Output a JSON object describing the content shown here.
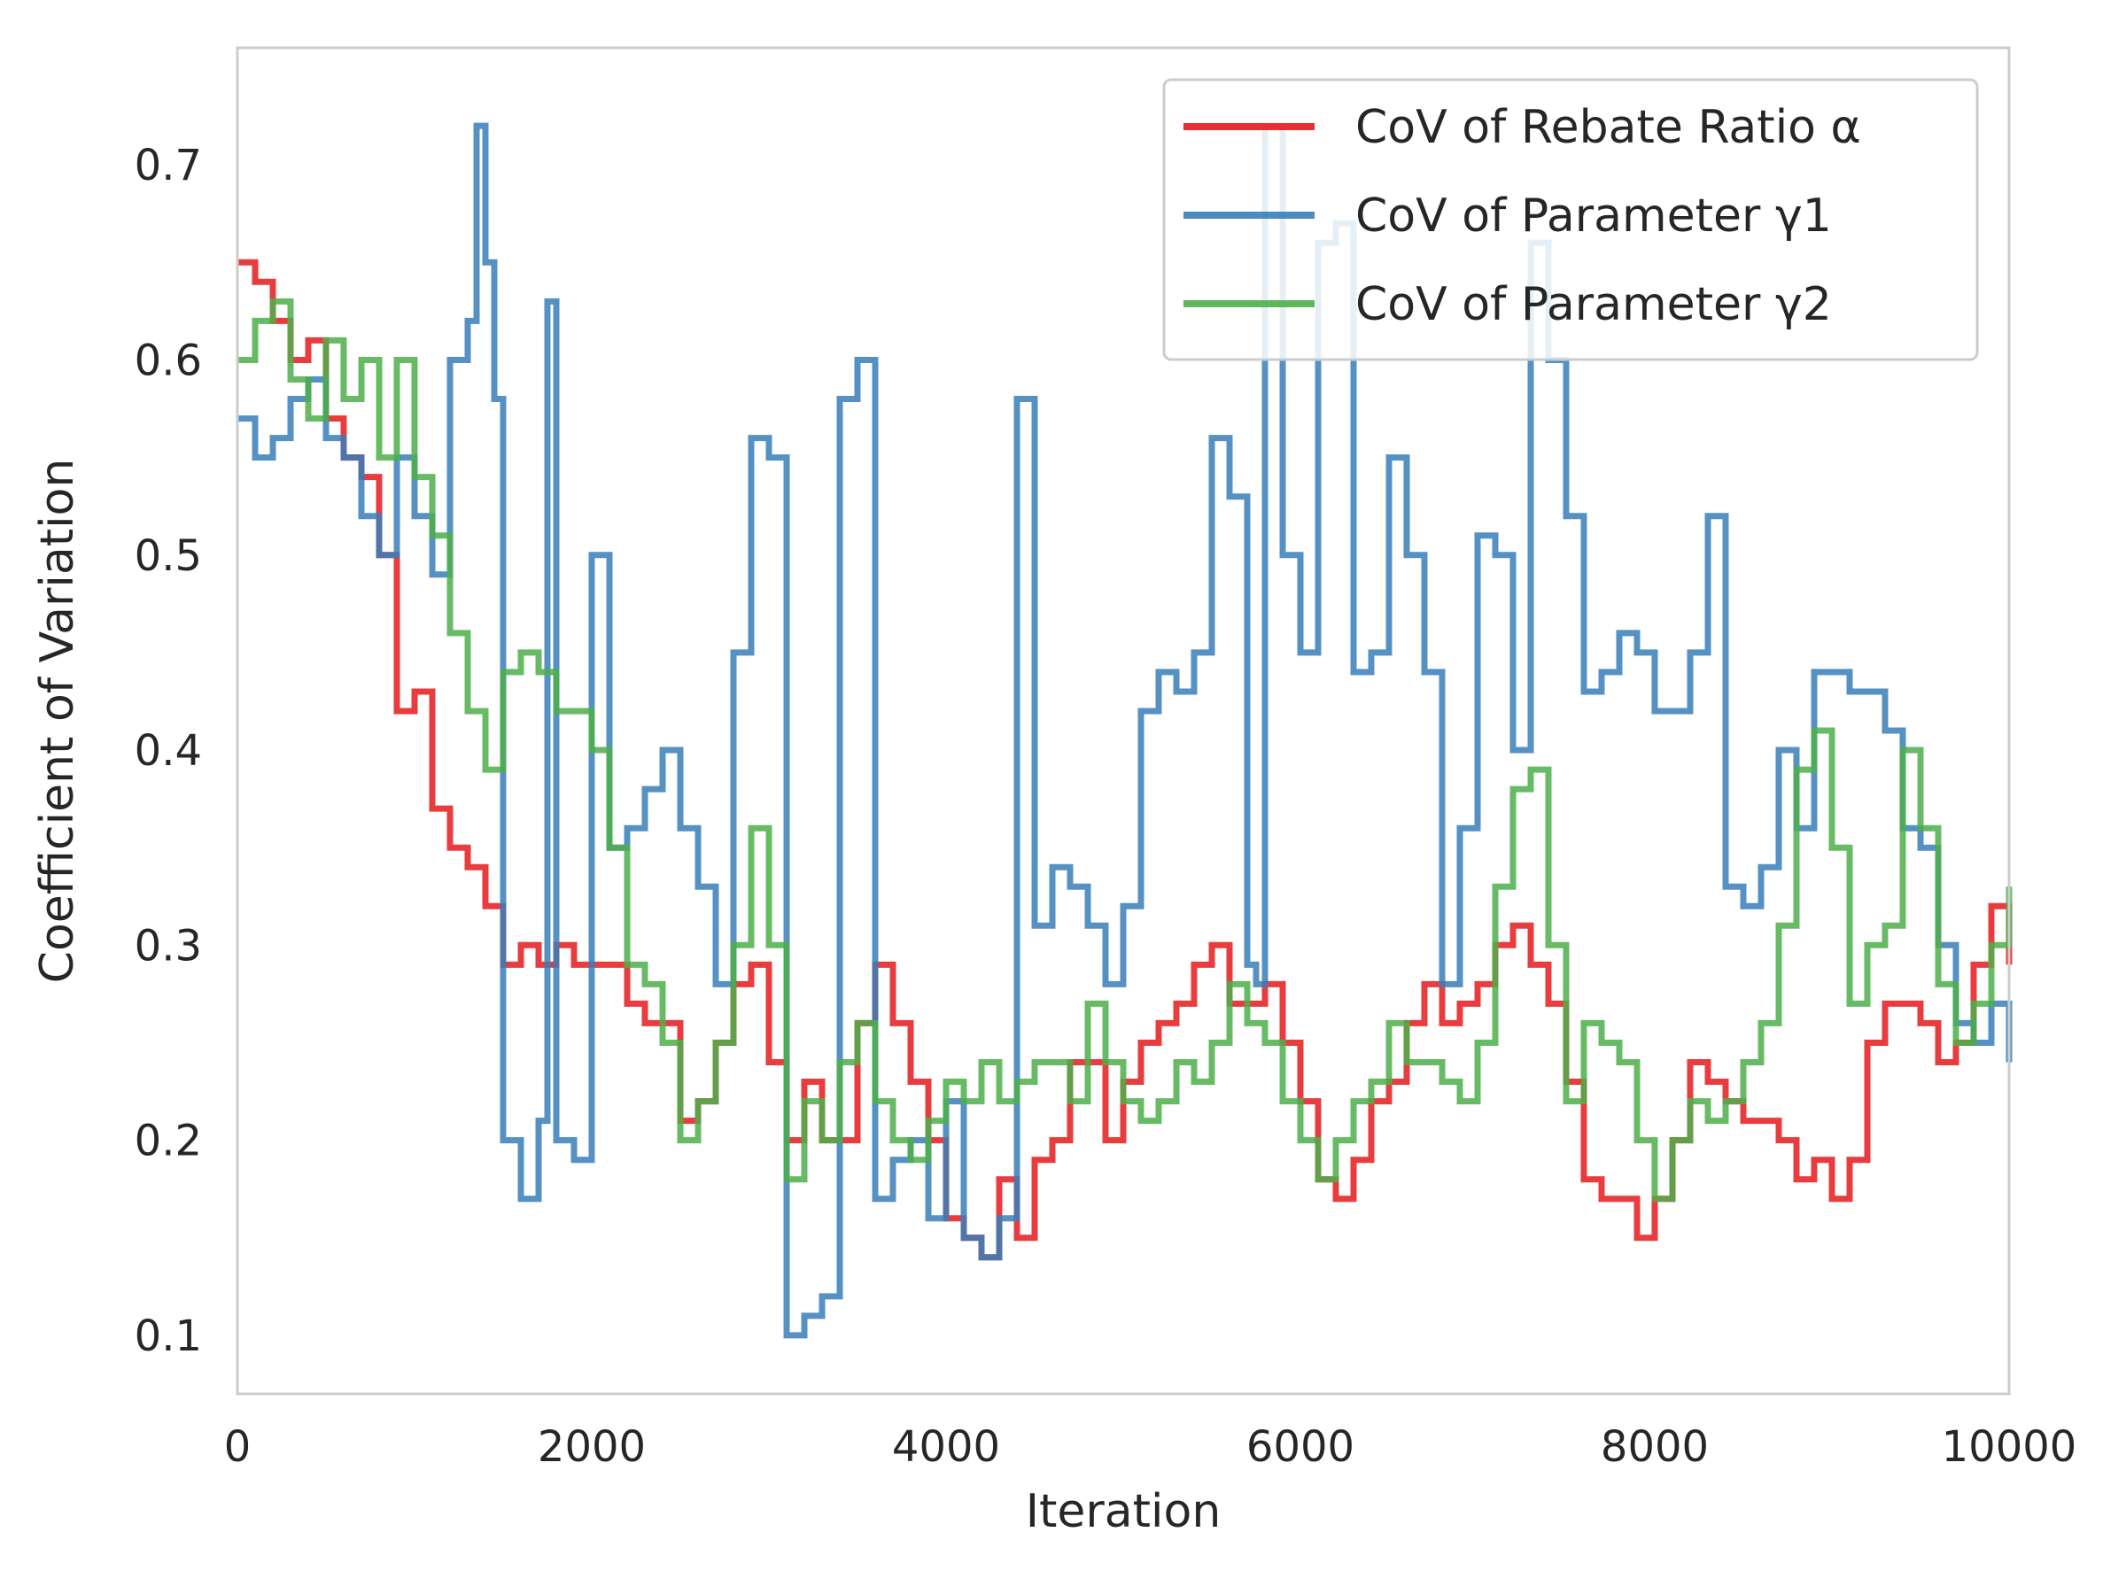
{
  "chart_data": {
    "type": "line",
    "xlabel": "Iteration",
    "ylabel": "Coefficient of Variation",
    "xlim": [
      0,
      10000
    ],
    "ylim": [
      0.07,
      0.76
    ],
    "xticks": [
      0,
      2000,
      4000,
      6000,
      8000,
      10000
    ],
    "yticks": [
      0.1,
      0.2,
      0.3,
      0.4,
      0.5,
      0.6,
      0.7
    ],
    "grid": false,
    "legend_position": "top-right",
    "series": [
      {
        "name": "CoV of Rebate Ratio α",
        "color": "#e41a1c",
        "x": [
          0,
          100,
          200,
          300,
          400,
          500,
          600,
          700,
          800,
          900,
          1000,
          1100,
          1200,
          1300,
          1400,
          1500,
          1600,
          1700,
          1800,
          1900,
          2000,
          2100,
          2200,
          2300,
          2400,
          2500,
          2600,
          2700,
          2800,
          2900,
          3000,
          3100,
          3200,
          3300,
          3400,
          3500,
          3600,
          3700,
          3800,
          3900,
          4000,
          4100,
          4200,
          4300,
          4400,
          4500,
          4600,
          4700,
          4800,
          4900,
          5000,
          5100,
          5200,
          5300,
          5400,
          5500,
          5600,
          5700,
          5800,
          5900,
          6000,
          6100,
          6200,
          6300,
          6400,
          6500,
          6600,
          6700,
          6800,
          6900,
          7000,
          7100,
          7200,
          7300,
          7400,
          7500,
          7600,
          7700,
          7800,
          7900,
          8000,
          8100,
          8200,
          8300,
          8400,
          8500,
          8600,
          8700,
          8800,
          8900,
          9000,
          9100,
          9200,
          9300,
          9400,
          9500,
          9600,
          9700,
          9800,
          9900,
          10000
        ],
        "y": [
          0.65,
          0.64,
          0.62,
          0.6,
          0.61,
          0.57,
          0.55,
          0.54,
          0.5,
          0.42,
          0.43,
          0.37,
          0.35,
          0.34,
          0.32,
          0.29,
          0.3,
          0.29,
          0.3,
          0.29,
          0.29,
          0.29,
          0.27,
          0.26,
          0.26,
          0.21,
          0.22,
          0.25,
          0.28,
          0.29,
          0.24,
          0.2,
          0.23,
          0.2,
          0.2,
          0.26,
          0.29,
          0.26,
          0.23,
          0.2,
          0.16,
          0.15,
          0.14,
          0.18,
          0.15,
          0.19,
          0.2,
          0.24,
          0.24,
          0.2,
          0.23,
          0.25,
          0.26,
          0.27,
          0.29,
          0.3,
          0.27,
          0.27,
          0.28,
          0.25,
          0.22,
          0.18,
          0.17,
          0.19,
          0.22,
          0.23,
          0.26,
          0.28,
          0.26,
          0.27,
          0.28,
          0.3,
          0.31,
          0.29,
          0.27,
          0.23,
          0.18,
          0.17,
          0.17,
          0.15,
          0.17,
          0.2,
          0.24,
          0.23,
          0.22,
          0.21,
          0.21,
          0.2,
          0.18,
          0.19,
          0.17,
          0.19,
          0.25,
          0.27,
          0.27,
          0.26,
          0.24,
          0.25,
          0.29,
          0.32,
          0.29
        ]
      },
      {
        "name": "CoV of Parameter γ1",
        "color": "#377eb8",
        "x": [
          0,
          100,
          200,
          300,
          400,
          500,
          600,
          700,
          800,
          900,
          1000,
          1100,
          1200,
          1300,
          1350,
          1400,
          1450,
          1500,
          1600,
          1700,
          1750,
          1800,
          1900,
          2000,
          2100,
          2200,
          2300,
          2400,
          2500,
          2600,
          2700,
          2800,
          2900,
          3000,
          3100,
          3200,
          3300,
          3400,
          3500,
          3600,
          3700,
          3800,
          3900,
          4000,
          4100,
          4200,
          4300,
          4400,
          4500,
          4600,
          4700,
          4800,
          4900,
          5000,
          5100,
          5200,
          5300,
          5400,
          5500,
          5600,
          5700,
          5750,
          5800,
          5900,
          6000,
          6100,
          6200,
          6300,
          6400,
          6500,
          6600,
          6700,
          6800,
          6900,
          7000,
          7100,
          7200,
          7300,
          7400,
          7500,
          7600,
          7700,
          7800,
          7900,
          8000,
          8100,
          8200,
          8300,
          8400,
          8500,
          8600,
          8700,
          8800,
          8900,
          9000,
          9100,
          9200,
          9300,
          9400,
          9500,
          9600,
          9700,
          9800,
          9900,
          10000
        ],
        "y": [
          0.57,
          0.55,
          0.56,
          0.58,
          0.59,
          0.56,
          0.55,
          0.52,
          0.5,
          0.55,
          0.52,
          0.49,
          0.6,
          0.62,
          0.72,
          0.65,
          0.58,
          0.2,
          0.17,
          0.21,
          0.63,
          0.2,
          0.19,
          0.5,
          0.35,
          0.36,
          0.38,
          0.4,
          0.36,
          0.33,
          0.28,
          0.45,
          0.56,
          0.55,
          0.1,
          0.11,
          0.12,
          0.58,
          0.6,
          0.17,
          0.19,
          0.2,
          0.16,
          0.22,
          0.15,
          0.14,
          0.16,
          0.58,
          0.31,
          0.34,
          0.33,
          0.31,
          0.28,
          0.32,
          0.42,
          0.44,
          0.43,
          0.45,
          0.56,
          0.53,
          0.29,
          0.28,
          0.72,
          0.5,
          0.45,
          0.66,
          0.67,
          0.44,
          0.45,
          0.55,
          0.5,
          0.44,
          0.28,
          0.36,
          0.51,
          0.5,
          0.4,
          0.66,
          0.6,
          0.52,
          0.43,
          0.44,
          0.46,
          0.45,
          0.42,
          0.42,
          0.45,
          0.52,
          0.33,
          0.32,
          0.34,
          0.4,
          0.36,
          0.44,
          0.44,
          0.43,
          0.43,
          0.41,
          0.36,
          0.35,
          0.3,
          0.26,
          0.25,
          0.27,
          0.24
        ]
      },
      {
        "name": "CoV of Parameter γ2",
        "color": "#4daf4a",
        "x": [
          0,
          100,
          200,
          300,
          400,
          500,
          600,
          700,
          800,
          900,
          1000,
          1100,
          1200,
          1300,
          1400,
          1500,
          1600,
          1700,
          1800,
          1900,
          2000,
          2100,
          2200,
          2300,
          2400,
          2500,
          2600,
          2700,
          2800,
          2900,
          3000,
          3100,
          3200,
          3300,
          3400,
          3500,
          3600,
          3700,
          3800,
          3900,
          4000,
          4100,
          4200,
          4300,
          4400,
          4500,
          4600,
          4700,
          4800,
          4900,
          5000,
          5100,
          5200,
          5300,
          5400,
          5500,
          5600,
          5700,
          5800,
          5900,
          6000,
          6100,
          6200,
          6300,
          6400,
          6500,
          6600,
          6700,
          6800,
          6900,
          7000,
          7100,
          7200,
          7300,
          7400,
          7500,
          7600,
          7700,
          7800,
          7900,
          8000,
          8100,
          8200,
          8300,
          8400,
          8500,
          8600,
          8700,
          8800,
          8900,
          9000,
          9100,
          9200,
          9300,
          9400,
          9500,
          9600,
          9700,
          9800,
          9900,
          10000
        ],
        "y": [
          0.6,
          0.62,
          0.63,
          0.59,
          0.57,
          0.61,
          0.58,
          0.6,
          0.55,
          0.6,
          0.54,
          0.51,
          0.46,
          0.42,
          0.39,
          0.44,
          0.45,
          0.44,
          0.42,
          0.42,
          0.4,
          0.35,
          0.29,
          0.28,
          0.25,
          0.2,
          0.22,
          0.25,
          0.3,
          0.36,
          0.3,
          0.18,
          0.22,
          0.2,
          0.24,
          0.26,
          0.22,
          0.2,
          0.19,
          0.21,
          0.23,
          0.22,
          0.24,
          0.22,
          0.23,
          0.24,
          0.24,
          0.22,
          0.27,
          0.24,
          0.22,
          0.21,
          0.22,
          0.24,
          0.23,
          0.25,
          0.28,
          0.26,
          0.25,
          0.22,
          0.2,
          0.18,
          0.2,
          0.22,
          0.23,
          0.26,
          0.24,
          0.24,
          0.23,
          0.22,
          0.25,
          0.33,
          0.38,
          0.39,
          0.3,
          0.22,
          0.26,
          0.25,
          0.24,
          0.2,
          0.17,
          0.2,
          0.22,
          0.21,
          0.22,
          0.24,
          0.26,
          0.31,
          0.39,
          0.41,
          0.35,
          0.27,
          0.3,
          0.31,
          0.4,
          0.36,
          0.28,
          0.25,
          0.27,
          0.3,
          0.33
        ]
      }
    ]
  }
}
